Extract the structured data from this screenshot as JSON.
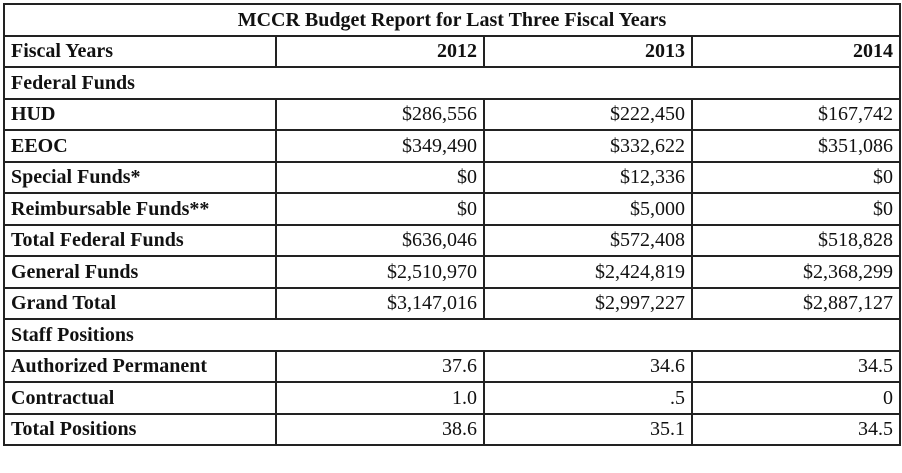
{
  "title": "MCCR Budget Report for Last Three Fiscal Years",
  "header": {
    "label": "Fiscal Years",
    "years": [
      "2012",
      "2013",
      "2014"
    ]
  },
  "sections": {
    "federal_funds": "Federal Funds",
    "staff_positions": "Staff Positions"
  },
  "rows": [
    {
      "label": "HUD",
      "values": [
        "$286,556",
        "$222,450",
        "$167,742"
      ]
    },
    {
      "label": "EEOC",
      "values": [
        "$349,490",
        "$332,622",
        "$351,086"
      ]
    },
    {
      "label": "Special Funds*",
      "values": [
        "$0",
        "$12,336",
        "$0"
      ]
    },
    {
      "label": "Reimbursable Funds**",
      "values": [
        "$0",
        "$5,000",
        "$0"
      ]
    },
    {
      "label": "Total Federal Funds",
      "values": [
        "$636,046",
        "$572,408",
        "$518,828"
      ]
    },
    {
      "label": "General Funds",
      "values": [
        "$2,510,970",
        "$2,424,819",
        "$2,368,299"
      ]
    },
    {
      "label": "Grand Total",
      "values": [
        "$3,147,016",
        "$2,997,227",
        "$2,887,127"
      ]
    },
    {
      "label": "Authorized Permanent",
      "values": [
        "37.6",
        "34.6",
        "34.5"
      ]
    },
    {
      "label": "Contractual",
      "values": [
        "1.0",
        ".5",
        "0"
      ]
    },
    {
      "label": "Total Positions",
      "values": [
        "38.6",
        "35.1",
        "34.5"
      ]
    }
  ]
}
